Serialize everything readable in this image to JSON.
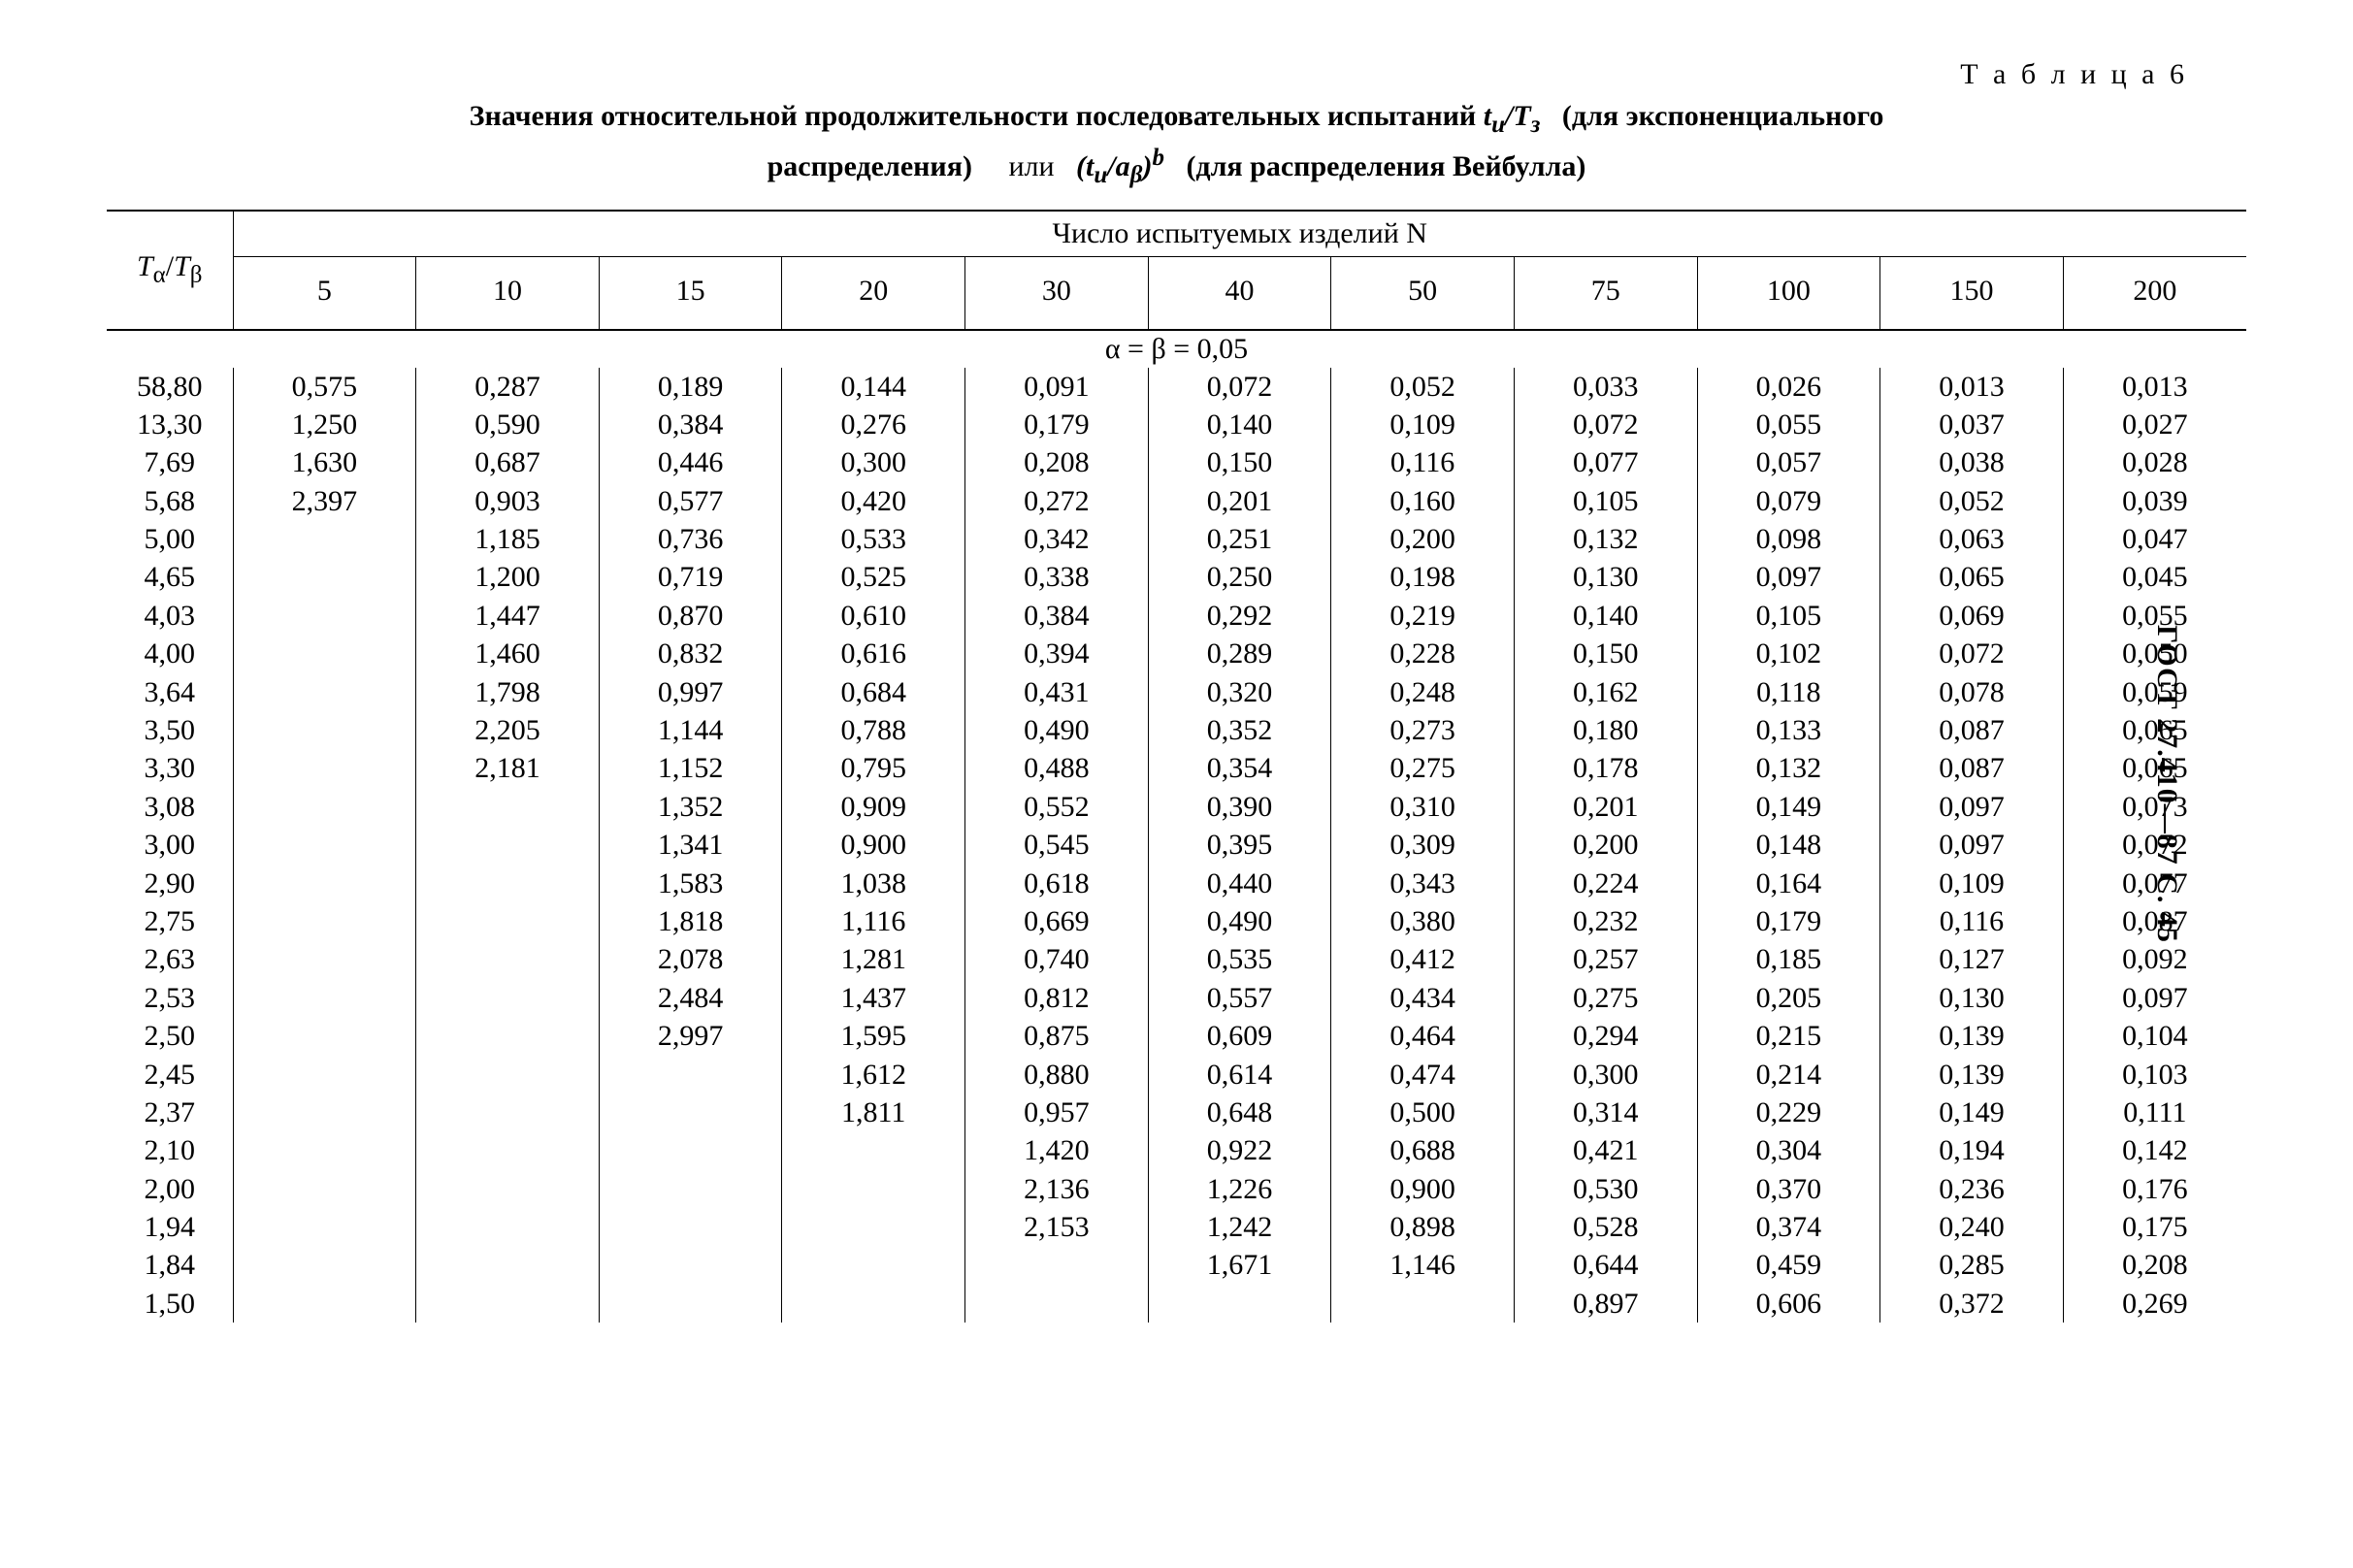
{
  "text_color": "#000000",
  "bg_color": "#ffffff",
  "table_label": "Т а б л и ц а 6",
  "caption_line1_strong": "Значения относительной продолжительности последовательных испытаний ",
  "caption_line1_formula": "tи/Tз",
  "caption_line1_tail": "(для экспоненциального",
  "caption_line2_a": "распределения)",
  "caption_line2_b": "или",
  "caption_line2_formula": "(tи/aβ)b",
  "caption_line2_c": "(для распределения Вейбулла)",
  "header_n_label": "Число испытуемых изделий N",
  "row_label_html": "T<sub>α</sub>/T<sub>β</sub>",
  "columns": [
    "5",
    "10",
    "15",
    "20",
    "30",
    "40",
    "50",
    "75",
    "100",
    "150",
    "200"
  ],
  "section_label_html": "α = β = 0,05",
  "ratios": [
    "58,80",
    "13,30",
    "7,69",
    "5,68",
    "5,00",
    "4,65",
    "4,03",
    "4,00",
    "3,64",
    "3,50",
    "3,30",
    "3,08",
    "3,00",
    "2,90",
    "2,75",
    "2,63",
    "2,53",
    "2,50",
    "2,45",
    "2,37",
    "2,10",
    "2,00",
    "1,94",
    "1,84",
    "1,50"
  ],
  "cells": [
    [
      "0,575",
      "0,287",
      "0,189",
      "0,144",
      "0,091",
      "0,072",
      "0,052",
      "0,033",
      "0,026",
      "0,013",
      "0,013"
    ],
    [
      "1,250",
      "0,590",
      "0,384",
      "0,276",
      "0,179",
      "0,140",
      "0,109",
      "0,072",
      "0,055",
      "0,037",
      "0,027"
    ],
    [
      "1,630",
      "0,687",
      "0,446",
      "0,300",
      "0,208",
      "0,150",
      "0,116",
      "0,077",
      "0,057",
      "0,038",
      "0,028"
    ],
    [
      "2,397",
      "0,903",
      "0,577",
      "0,420",
      "0,272",
      "0,201",
      "0,160",
      "0,105",
      "0,079",
      "0,052",
      "0,039"
    ],
    [
      "",
      "1,185",
      "0,736",
      "0,533",
      "0,342",
      "0,251",
      "0,200",
      "0,132",
      "0,098",
      "0,063",
      "0,047"
    ],
    [
      "",
      "1,200",
      "0,719",
      "0,525",
      "0,338",
      "0,250",
      "0,198",
      "0,130",
      "0,097",
      "0,065",
      "0,045"
    ],
    [
      "",
      "1,447",
      "0,870",
      "0,610",
      "0,384",
      "0,292",
      "0,219",
      "0,140",
      "0,105",
      "0,069",
      "0,055"
    ],
    [
      "",
      "1,460",
      "0,832",
      "0,616",
      "0,394",
      "0,289",
      "0,228",
      "0,150",
      "0,102",
      "0,072",
      "0,050"
    ],
    [
      "",
      "1,798",
      "0,997",
      "0,684",
      "0,431",
      "0,320",
      "0,248",
      "0,162",
      "0,118",
      "0,078",
      "0,059"
    ],
    [
      "",
      "2,205",
      "1,144",
      "0,788",
      "0,490",
      "0,352",
      "0,273",
      "0,180",
      "0,133",
      "0,087",
      "0,065"
    ],
    [
      "",
      "2,181",
      "1,152",
      "0,795",
      "0,488",
      "0,354",
      "0,275",
      "0,178",
      "0,132",
      "0,087",
      "0,065"
    ],
    [
      "",
      "",
      "1,352",
      "0,909",
      "0,552",
      "0,390",
      "0,310",
      "0,201",
      "0,149",
      "0,097",
      "0,073"
    ],
    [
      "",
      "",
      "1,341",
      "0,900",
      "0,545",
      "0,395",
      "0,309",
      "0,200",
      "0,148",
      "0,097",
      "0,072"
    ],
    [
      "",
      "",
      "1,583",
      "1,038",
      "0,618",
      "0,440",
      "0,343",
      "0,224",
      "0,164",
      "0,109",
      "0,077"
    ],
    [
      "",
      "",
      "1,818",
      "1,116",
      "0,669",
      "0,490",
      "0,380",
      "0,232",
      "0,179",
      "0,116",
      "0,087"
    ],
    [
      "",
      "",
      "2,078",
      "1,281",
      "0,740",
      "0,535",
      "0,412",
      "0,257",
      "0,185",
      "0,127",
      "0,092"
    ],
    [
      "",
      "",
      "2,484",
      "1,437",
      "0,812",
      "0,557",
      "0,434",
      "0,275",
      "0,205",
      "0,130",
      "0,097"
    ],
    [
      "",
      "",
      "2,997",
      "1,595",
      "0,875",
      "0,609",
      "0,464",
      "0,294",
      "0,215",
      "0,139",
      "0,104"
    ],
    [
      "",
      "",
      "",
      "1,612",
      "0,880",
      "0,614",
      "0,474",
      "0,300",
      "0,214",
      "0,139",
      "0,103"
    ],
    [
      "",
      "",
      "",
      "1,811",
      "0,957",
      "0,648",
      "0,500",
      "0,314",
      "0,229",
      "0,149",
      "0,111"
    ],
    [
      "",
      "",
      "",
      "",
      "1,420",
      "0,922",
      "0,688",
      "0,421",
      "0,304",
      "0,194",
      "0,142"
    ],
    [
      "",
      "",
      "",
      "",
      "2,136",
      "1,226",
      "0,900",
      "0,530",
      "0,370",
      "0,236",
      "0,176"
    ],
    [
      "",
      "",
      "",
      "",
      "2,153",
      "1,242",
      "0,898",
      "0,528",
      "0,374",
      "0,240",
      "0,175"
    ],
    [
      "",
      "",
      "",
      "",
      "",
      "1,671",
      "1,146",
      "0,644",
      "0,459",
      "0,285",
      "0,208"
    ],
    [
      "",
      "",
      "",
      "",
      "",
      "",
      "",
      "0,897",
      "0,606",
      "0,372",
      "0,269"
    ]
  ],
  "side_citation": "ГОСТ 27.410—87 С. 45"
}
